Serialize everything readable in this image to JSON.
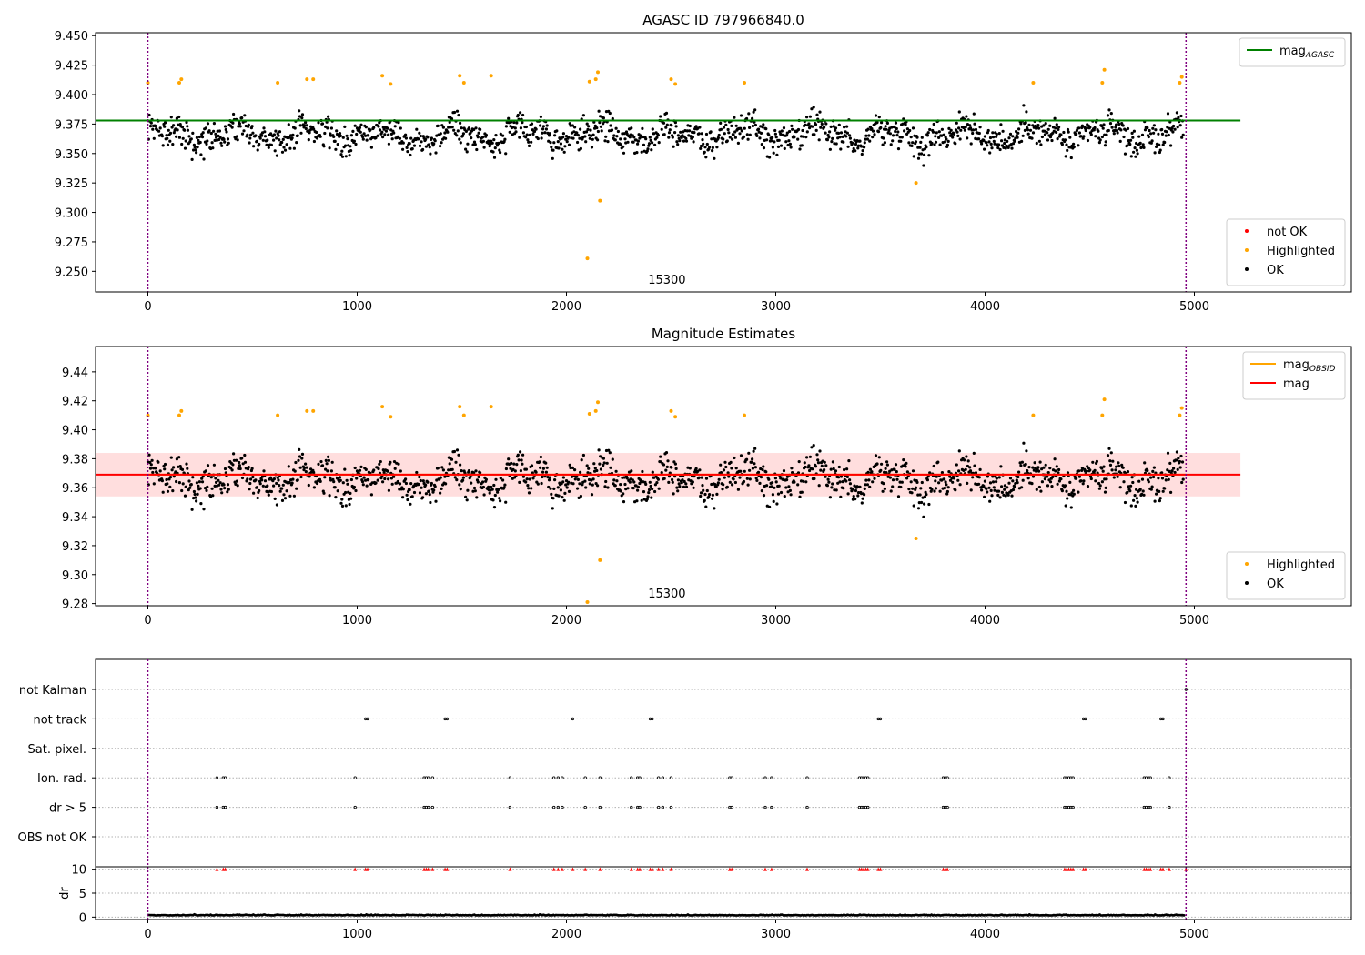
{
  "chart_data": [
    {
      "type": "scatter",
      "title": "AGASC ID 797966840.0",
      "xlim": [
        -250,
        5750
      ],
      "ylim": [
        9.2325,
        9.4525
      ],
      "x_ticks": [
        0,
        1000,
        2000,
        3000,
        4000,
        5000
      ],
      "y_ticks": [
        9.25,
        9.275,
        9.3,
        9.325,
        9.35,
        9.375,
        9.4,
        9.425,
        9.45
      ],
      "y_tick_decimals": 3,
      "obsid_label": "15300",
      "obsid_label_x": 2480,
      "obsid_bounds": [
        0,
        4960
      ],
      "scatter_baseline": 9.366,
      "scatter_spread": 0.012,
      "scatter_x_range": [
        0,
        4950
      ],
      "highlighted_points": [
        {
          "x": 0,
          "y": 9.41
        },
        {
          "x": 150,
          "y": 9.41
        },
        {
          "x": 160,
          "y": 9.413
        },
        {
          "x": 620,
          "y": 9.41
        },
        {
          "x": 760,
          "y": 9.413
        },
        {
          "x": 790,
          "y": 9.413
        },
        {
          "x": 1120,
          "y": 9.416
        },
        {
          "x": 1160,
          "y": 9.409
        },
        {
          "x": 1490,
          "y": 9.416
        },
        {
          "x": 1510,
          "y": 9.41
        },
        {
          "x": 1640,
          "y": 9.416
        },
        {
          "x": 2100,
          "y": 9.261
        },
        {
          "x": 2110,
          "y": 9.411
        },
        {
          "x": 2140,
          "y": 9.413
        },
        {
          "x": 2150,
          "y": 9.419
        },
        {
          "x": 2160,
          "y": 9.31
        },
        {
          "x": 2500,
          "y": 9.413
        },
        {
          "x": 2520,
          "y": 9.409
        },
        {
          "x": 2850,
          "y": 9.41
        },
        {
          "x": 3670,
          "y": 9.325
        },
        {
          "x": 4230,
          "y": 9.41
        },
        {
          "x": 4560,
          "y": 9.41
        },
        {
          "x": 4570,
          "y": 9.421
        },
        {
          "x": 4930,
          "y": 9.41
        },
        {
          "x": 4940,
          "y": 9.415
        }
      ],
      "lines": [
        {
          "name": "mag$_{AGASC}$",
          "y": 9.378,
          "x_range": [
            -250,
            5220
          ],
          "color": "#008000"
        }
      ],
      "legends": [
        {
          "position": "upper-right",
          "entries": [
            {
              "kind": "line",
              "color": "#008000",
              "label": "mag",
              "sub": "AGASC"
            }
          ]
        },
        {
          "position": "lower-right",
          "entries": [
            {
              "kind": "dot",
              "color": "#ff0000",
              "label": "not OK"
            },
            {
              "kind": "dot",
              "color": "#ffa500",
              "label": "Highlighted"
            },
            {
              "kind": "dot",
              "color": "#000000",
              "label": "OK"
            }
          ]
        }
      ]
    },
    {
      "type": "scatter",
      "title": "Magnitude Estimates",
      "xlim": [
        -250,
        5750
      ],
      "ylim": [
        9.2785,
        9.4575
      ],
      "x_ticks": [
        0,
        1000,
        2000,
        3000,
        4000,
        5000
      ],
      "y_ticks": [
        9.28,
        9.3,
        9.32,
        9.34,
        9.36,
        9.38,
        9.4,
        9.42,
        9.44
      ],
      "y_tick_decimals": 2,
      "obsid_label": "15300",
      "obsid_label_x": 2480,
      "obsid_bounds": [
        0,
        4960
      ],
      "scatter_baseline": 9.366,
      "scatter_spread": 0.012,
      "scatter_x_range": [
        0,
        4950
      ],
      "highlighted_points": [
        {
          "x": 0,
          "y": 9.41
        },
        {
          "x": 150,
          "y": 9.41
        },
        {
          "x": 160,
          "y": 9.413
        },
        {
          "x": 620,
          "y": 9.41
        },
        {
          "x": 760,
          "y": 9.413
        },
        {
          "x": 790,
          "y": 9.413
        },
        {
          "x": 1120,
          "y": 9.416
        },
        {
          "x": 1160,
          "y": 9.409
        },
        {
          "x": 1490,
          "y": 9.416
        },
        {
          "x": 1510,
          "y": 9.41
        },
        {
          "x": 1640,
          "y": 9.416
        },
        {
          "x": 2100,
          "y": 9.281
        },
        {
          "x": 2110,
          "y": 9.411
        },
        {
          "x": 2140,
          "y": 9.413
        },
        {
          "x": 2150,
          "y": 9.419
        },
        {
          "x": 2160,
          "y": 9.31
        },
        {
          "x": 2500,
          "y": 9.413
        },
        {
          "x": 2520,
          "y": 9.409
        },
        {
          "x": 2850,
          "y": 9.41
        },
        {
          "x": 3670,
          "y": 9.325
        },
        {
          "x": 4230,
          "y": 9.41
        },
        {
          "x": 4560,
          "y": 9.41
        },
        {
          "x": 4570,
          "y": 9.421
        },
        {
          "x": 4930,
          "y": 9.41
        },
        {
          "x": 4940,
          "y": 9.415
        }
      ],
      "band": {
        "y_low": 9.354,
        "y_high": 9.384,
        "x_range": [
          -250,
          5220
        ],
        "color": "#ffb6b6"
      },
      "lines": [
        {
          "name": "mag$_{OBSID}$",
          "y": 9.369,
          "x_range": [
            0,
            4960
          ],
          "color": "#ffa500"
        },
        {
          "name": "mag",
          "y": 9.369,
          "x_range": [
            -250,
            5220
          ],
          "color": "#ff0000"
        }
      ],
      "legends": [
        {
          "position": "upper-right",
          "entries": [
            {
              "kind": "line",
              "color": "#ffa500",
              "label": "mag",
              "sub": "OBSID"
            },
            {
              "kind": "line",
              "color": "#ff0000",
              "label": "mag"
            }
          ]
        },
        {
          "position": "lower-right",
          "entries": [
            {
              "kind": "dot",
              "color": "#ffa500",
              "label": "Highlighted"
            },
            {
              "kind": "dot",
              "color": "#000000",
              "label": "OK"
            }
          ]
        }
      ]
    },
    {
      "type": "scatter",
      "title": "",
      "xlim": [
        -250,
        5750
      ],
      "categories": [
        "not Kalman",
        "not track",
        "Sat. pixel.",
        "Ion. rad.",
        "dr > 5",
        "OBS not OK"
      ],
      "obsid_bounds": [
        0,
        4960
      ],
      "flag_events": {
        "not Kalman": [
          4960
        ],
        "not track": [
          1040,
          1050,
          1420,
          1430,
          2030,
          2400,
          2410,
          3490,
          3500,
          4470,
          4480,
          4840,
          4850
        ],
        "Sat. pixel.": [],
        "Ion. rad.": [
          330,
          360,
          370,
          990,
          1320,
          1330,
          1340,
          1360,
          1730,
          1940,
          1960,
          1980,
          2090,
          2160,
          2310,
          2340,
          2350,
          2440,
          2460,
          2500,
          2780,
          2790,
          2950,
          2980,
          3150,
          3400,
          3410,
          3420,
          3430,
          3440,
          3800,
          3810,
          3820,
          4380,
          4390,
          4400,
          4410,
          4420,
          4760,
          4770,
          4780,
          4790,
          4880
        ],
        "dr > 5": [
          330,
          360,
          370,
          990,
          1320,
          1330,
          1340,
          1360,
          1730,
          1940,
          1960,
          1980,
          2090,
          2160,
          2310,
          2340,
          2350,
          2440,
          2460,
          2500,
          2780,
          2790,
          2950,
          2980,
          3150,
          3400,
          3410,
          3420,
          3430,
          3440,
          3800,
          3810,
          3820,
          4380,
          4390,
          4400,
          4410,
          4420,
          4760,
          4770,
          4780,
          4790,
          4880
        ],
        "OBS not OK": []
      }
    },
    {
      "type": "scatter",
      "title": "",
      "xlim": [
        -250,
        5750
      ],
      "ylim": [
        -0.5,
        10.5
      ],
      "x_ticks": [
        0,
        1000,
        2000,
        3000,
        4000,
        5000
      ],
      "y_ticks": [
        0,
        5,
        10
      ],
      "ylabel": "dr",
      "obsid_bounds": [
        0,
        4960
      ],
      "dr_baseline": 0.35,
      "dr_clip_value": 10,
      "dr_clip_points": [
        330,
        360,
        370,
        990,
        1040,
        1050,
        1320,
        1330,
        1340,
        1360,
        1420,
        1430,
        1730,
        1940,
        1960,
        1980,
        2030,
        2090,
        2160,
        2310,
        2340,
        2350,
        2400,
        2410,
        2440,
        2460,
        2500,
        2780,
        2790,
        2950,
        2980,
        3150,
        3400,
        3410,
        3420,
        3430,
        3440,
        3490,
        3500,
        3800,
        3810,
        3820,
        4380,
        4390,
        4400,
        4410,
        4420,
        4470,
        4480,
        4760,
        4770,
        4780,
        4790,
        4840,
        4850,
        4880,
        4960
      ]
    }
  ]
}
